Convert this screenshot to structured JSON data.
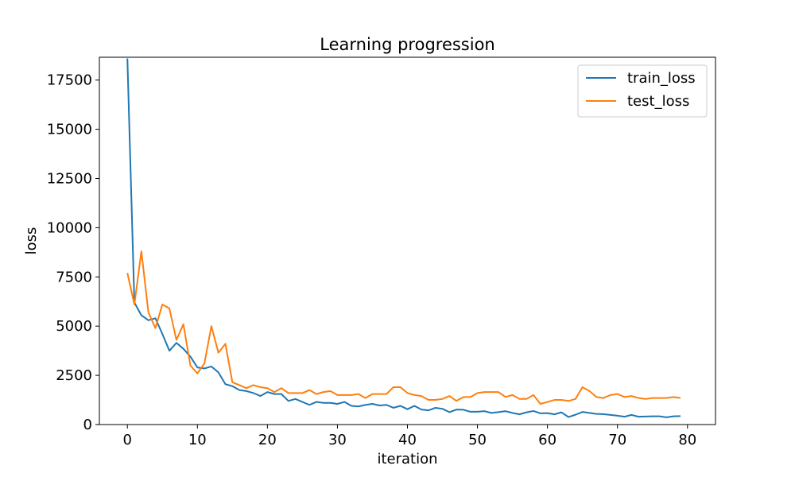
{
  "chart_data": {
    "type": "line",
    "title": "Learning progression",
    "xlabel": "iteration",
    "ylabel": "loss",
    "xlim": [
      -4,
      84
    ],
    "ylim": [
      0,
      18660
    ],
    "xticks": [
      0,
      10,
      20,
      30,
      40,
      50,
      60,
      70,
      80
    ],
    "yticks": [
      0,
      2500,
      5000,
      7500,
      10000,
      12500,
      15000,
      17500
    ],
    "grid": false,
    "legend_position": "top-right",
    "x": [
      0,
      1,
      2,
      3,
      4,
      5,
      6,
      7,
      8,
      9,
      10,
      11,
      12,
      13,
      14,
      15,
      16,
      17,
      18,
      19,
      20,
      21,
      22,
      23,
      24,
      25,
      26,
      27,
      28,
      29,
      30,
      31,
      32,
      33,
      34,
      35,
      36,
      37,
      38,
      39,
      40,
      41,
      42,
      43,
      44,
      45,
      46,
      47,
      48,
      49,
      50,
      51,
      52,
      53,
      54,
      55,
      56,
      57,
      58,
      59,
      60,
      61,
      62,
      63,
      64,
      65,
      66,
      67,
      68,
      69,
      70,
      71,
      72,
      73,
      74,
      75,
      76,
      77,
      78,
      79
    ],
    "series": [
      {
        "name": "train_loss",
        "color": "#1f77b4",
        "values": [
          18600,
          6200,
          5550,
          5300,
          5400,
          4600,
          3750,
          4150,
          3850,
          3450,
          2900,
          2850,
          2950,
          2650,
          2050,
          1950,
          1750,
          1700,
          1600,
          1450,
          1650,
          1550,
          1550,
          1200,
          1300,
          1150,
          1000,
          1150,
          1100,
          1100,
          1050,
          1150,
          950,
          920,
          1000,
          1050,
          970,
          1000,
          850,
          950,
          780,
          950,
          760,
          720,
          850,
          800,
          630,
          760,
          750,
          650,
          650,
          680,
          590,
          630,
          680,
          590,
          520,
          620,
          690,
          570,
          580,
          520,
          620,
          380,
          500,
          640,
          590,
          540,
          530,
          490,
          450,
          400,
          490,
          400,
          410,
          420,
          420,
          370,
          420,
          430
        ]
      },
      {
        "name": "test_loss",
        "color": "#ff7f0e",
        "values": [
          7700,
          6100,
          8800,
          5700,
          4900,
          6100,
          5900,
          4300,
          5100,
          3000,
          2600,
          3100,
          5000,
          3650,
          4100,
          2150,
          2000,
          1850,
          2000,
          1900,
          1850,
          1650,
          1850,
          1600,
          1600,
          1600,
          1750,
          1550,
          1650,
          1700,
          1500,
          1500,
          1500,
          1550,
          1350,
          1550,
          1550,
          1550,
          1900,
          1900,
          1600,
          1500,
          1450,
          1250,
          1250,
          1300,
          1450,
          1200,
          1400,
          1400,
          1600,
          1650,
          1650,
          1650,
          1400,
          1500,
          1300,
          1300,
          1500,
          1050,
          1150,
          1250,
          1250,
          1200,
          1300,
          1900,
          1700,
          1400,
          1350,
          1500,
          1550,
          1400,
          1450,
          1350,
          1300,
          1350,
          1350,
          1350,
          1400,
          1350
        ]
      }
    ]
  }
}
